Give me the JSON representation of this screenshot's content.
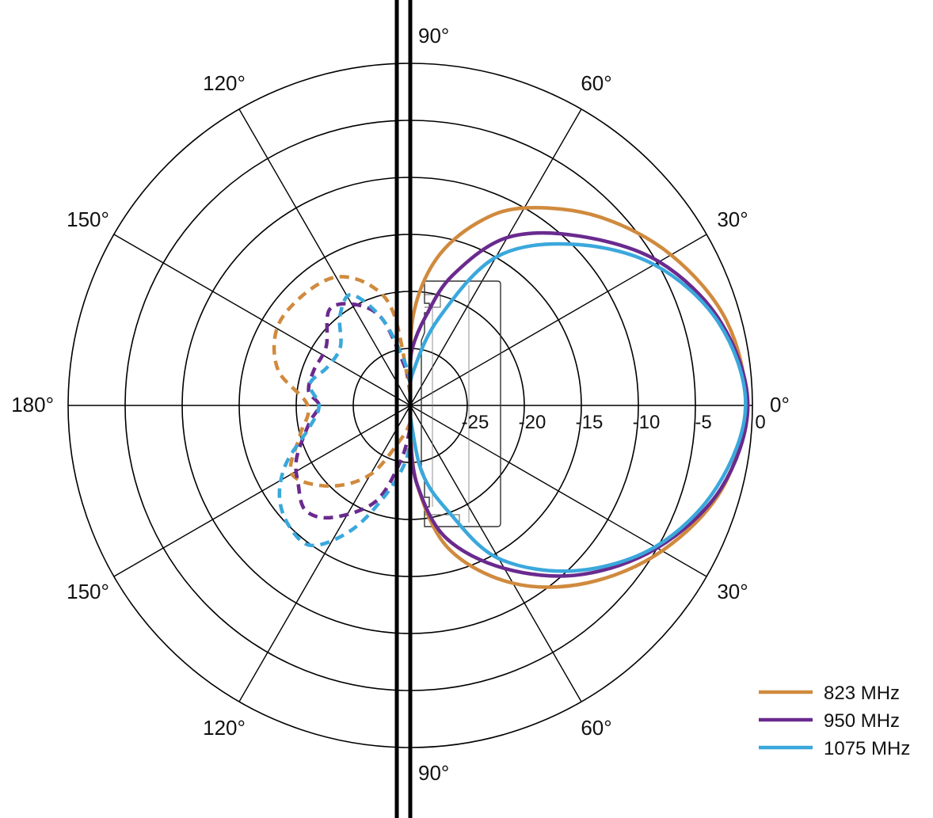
{
  "chart_data": {
    "type": "polar-line",
    "title": "",
    "r_unit": "dB",
    "r_range": [
      -30,
      0
    ],
    "r_ticks": [
      {
        "value": -25,
        "label": "-25"
      },
      {
        "value": -20,
        "label": "-20"
      },
      {
        "value": -15,
        "label": "-15"
      },
      {
        "value": -10,
        "label": "-10"
      },
      {
        "value": -5,
        "label": "-5"
      },
      {
        "value": 0,
        "label": "0"
      }
    ],
    "angle_labels": [
      {
        "angle": 0,
        "label": "0°"
      },
      {
        "angle": 30,
        "label": "30°"
      },
      {
        "angle": 60,
        "label": "60°"
      },
      {
        "angle": 90,
        "label": "90°"
      },
      {
        "angle": 120,
        "label": "120°"
      },
      {
        "angle": 150,
        "label": "150°"
      },
      {
        "angle": 180,
        "label": "180°"
      },
      {
        "angle": -150,
        "label": "150°"
      },
      {
        "angle": -120,
        "label": "120°"
      },
      {
        "angle": -90,
        "label": "90°"
      },
      {
        "angle": -60,
        "label": "60°"
      },
      {
        "angle": -30,
        "label": "30°"
      }
    ],
    "grid": true,
    "legend_position": "bottom-right",
    "series": [
      {
        "name": "823 MHz",
        "color": "#d08a3e",
        "front": [
          [
            -90,
            -28
          ],
          [
            -85,
            -23
          ],
          [
            -75,
            -17
          ],
          [
            -60,
            -12
          ],
          [
            -45,
            -8
          ],
          [
            -30,
            -4.5
          ],
          [
            -15,
            -1.7
          ],
          [
            0,
            -0.6
          ],
          [
            15,
            -1.3
          ],
          [
            30,
            -3.6
          ],
          [
            45,
            -6.6
          ],
          [
            60,
            -10
          ],
          [
            70,
            -13
          ],
          [
            80,
            -17
          ],
          [
            88,
            -22
          ],
          [
            90,
            -28
          ]
        ],
        "back": [
          [
            90,
            -29
          ],
          [
            100,
            -22
          ],
          [
            108,
            -19
          ],
          [
            120,
            -17
          ],
          [
            135,
            -16.5
          ],
          [
            150,
            -16.5
          ],
          [
            165,
            -18
          ],
          [
            180,
            -21
          ],
          [
            -165,
            -20
          ],
          [
            -150,
            -18
          ],
          [
            -135,
            -20
          ],
          [
            -120,
            -23
          ],
          [
            -105,
            -27
          ],
          [
            -90,
            -28.5
          ]
        ]
      },
      {
        "name": "950 MHz",
        "color": "#6a2a8e",
        "front": [
          [
            -90,
            -27
          ],
          [
            -85,
            -23
          ],
          [
            -75,
            -18
          ],
          [
            -60,
            -13.5
          ],
          [
            -45,
            -9
          ],
          [
            -30,
            -5
          ],
          [
            -15,
            -1.8
          ],
          [
            0,
            -0.4
          ],
          [
            15,
            -1.8
          ],
          [
            30,
            -4.8
          ],
          [
            45,
            -9
          ],
          [
            60,
            -13
          ],
          [
            72,
            -18
          ],
          [
            80,
            -22
          ],
          [
            88,
            -25
          ],
          [
            90,
            -27
          ]
        ],
        "back": [
          [
            90,
            -28
          ],
          [
            100,
            -26
          ],
          [
            108,
            -22
          ],
          [
            118,
            -20
          ],
          [
            130,
            -19
          ],
          [
            145,
            -21
          ],
          [
            160,
            -21
          ],
          [
            172,
            -21
          ],
          [
            180,
            -22
          ],
          [
            -170,
            -21
          ],
          [
            -155,
            -19
          ],
          [
            -145,
            -18
          ],
          [
            -135,
            -17
          ],
          [
            -125,
            -18
          ],
          [
            -110,
            -21
          ],
          [
            -100,
            -25
          ],
          [
            -90,
            -28
          ]
        ]
      },
      {
        "name": "1075 MHz",
        "color": "#3aa8dc",
        "front": [
          [
            -90,
            -29
          ],
          [
            -80,
            -24
          ],
          [
            -70,
            -20
          ],
          [
            -60,
            -14.5
          ],
          [
            -45,
            -9.5
          ],
          [
            -30,
            -5.2
          ],
          [
            -15,
            -2.2
          ],
          [
            0,
            -0.6
          ],
          [
            15,
            -2
          ],
          [
            30,
            -5.3
          ],
          [
            45,
            -10
          ],
          [
            60,
            -15
          ],
          [
            72,
            -22
          ],
          [
            85,
            -27
          ],
          [
            90,
            -29
          ]
        ],
        "back": [
          [
            90,
            -28
          ],
          [
            98,
            -26
          ],
          [
            108,
            -22
          ],
          [
            118,
            -19
          ],
          [
            128,
            -20
          ],
          [
            140,
            -22
          ],
          [
            155,
            -22
          ],
          [
            168,
            -21
          ],
          [
            180,
            -22
          ],
          [
            -168,
            -21
          ],
          [
            -155,
            -18
          ],
          [
            -145,
            -16
          ],
          [
            -135,
            -15
          ],
          [
            -125,
            -15
          ],
          [
            -115,
            -18
          ],
          [
            -105,
            -22
          ],
          [
            -95,
            -25
          ],
          [
            -90,
            -27
          ]
        ]
      }
    ]
  },
  "legend": [
    {
      "label": "823 MHz",
      "color": "#d08a3e"
    },
    {
      "label": "950 MHz",
      "color": "#6a2a8e"
    },
    {
      "label": "1075 MHz",
      "color": "#3aa8dc"
    }
  ]
}
